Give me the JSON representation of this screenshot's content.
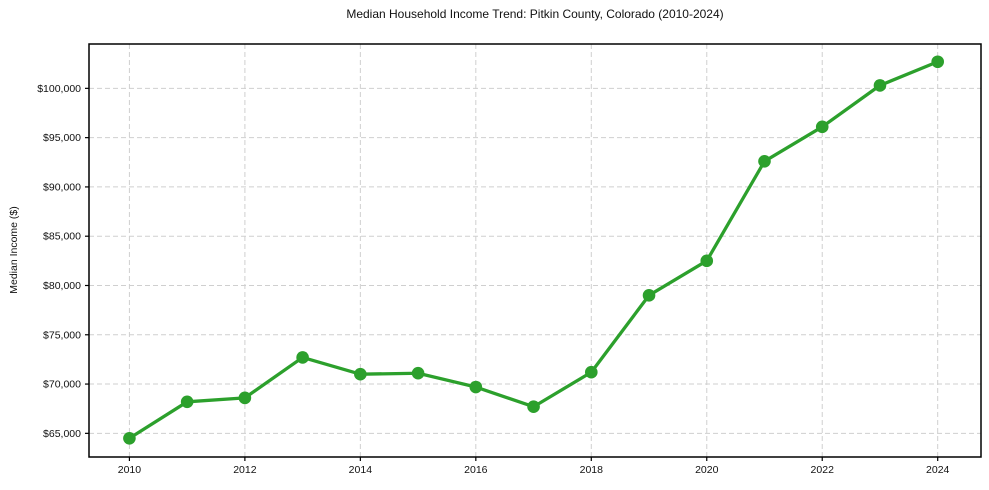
{
  "chart_data": {
    "type": "line",
    "title": "Median Household Income Trend: Pitkin County, Colorado (2010-2024)",
    "xlabel": "",
    "ylabel": "Median Income ($)",
    "x": [
      2010,
      2011,
      2012,
      2013,
      2014,
      2015,
      2016,
      2017,
      2018,
      2019,
      2020,
      2021,
      2022,
      2023,
      2024
    ],
    "series": [
      {
        "name": "Median Household Income",
        "values": [
          64500,
          68200,
          68600,
          72700,
          71000,
          71100,
          69700,
          67700,
          71200,
          79000,
          82500,
          92600,
          96100,
          100300,
          102700
        ],
        "color": "#2ca02c",
        "marker": "circle"
      }
    ],
    "xlim": [
      2009.3,
      2024.75
    ],
    "ylim": [
      62600,
      104500
    ],
    "x_ticks": [
      2010,
      2012,
      2014,
      2016,
      2018,
      2020,
      2022,
      2024
    ],
    "x_tick_labels": [
      "2010",
      "2012",
      "2014",
      "2016",
      "2018",
      "2020",
      "2022",
      "2024"
    ],
    "y_ticks": [
      65000,
      70000,
      75000,
      80000,
      85000,
      90000,
      95000,
      100000
    ],
    "y_tick_labels": [
      "$65,000",
      "$70,000",
      "$75,000",
      "$80,000",
      "$85,000",
      "$90,000",
      "$95,000",
      "$100,000"
    ],
    "grid": true,
    "grid_color": "#cfcfcf",
    "axis_color": "#000000",
    "tick_color": "#000000",
    "background": "#ffffff",
    "legend": "none"
  }
}
